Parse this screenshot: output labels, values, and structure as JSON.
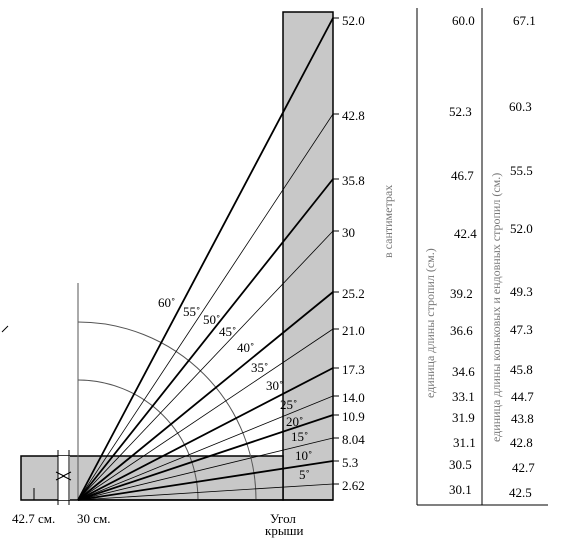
{
  "height_scale": {
    "axis_label": "в сантиметрах",
    "ticks": [
      "52.0",
      "42.8",
      "35.8",
      "30",
      "25.2",
      "21.0",
      "17.3",
      "14.0",
      "10.9",
      "8.04",
      "5.3",
      "2.62"
    ]
  },
  "angles": [
    "60˚",
    "55˚",
    "50˚",
    "45˚",
    "40˚",
    "35˚",
    "30˚",
    "25˚",
    "20˚",
    "15˚",
    "10˚",
    "5˚"
  ],
  "bottom": {
    "overhang_label": "42.7 см.",
    "run_label": "30 см.",
    "roof_angle_label_line1": "Угол",
    "roof_angle_label_line2": "крыши"
  },
  "table": {
    "rafter_header": "единица длины стропил  (см.)",
    "hip_header": "единица длины коньковых и  ендовных стропил (см.)",
    "rafter_values": [
      "60.0",
      "52.3",
      "46.7",
      "42.4",
      "39.2",
      "36.6",
      "34.6",
      "33.1",
      "31.9",
      "31.1",
      "30.5",
      "30.1"
    ],
    "hip_values": [
      "67.1",
      "60.3",
      "55.5",
      "52.0",
      "49.3",
      "47.3",
      "45.8",
      "44.7",
      "43.8",
      "42.8",
      "42.7",
      "42.5"
    ]
  },
  "colors": {
    "shade": "#c8c8c8",
    "line": "#000000",
    "arc": "#555555"
  }
}
